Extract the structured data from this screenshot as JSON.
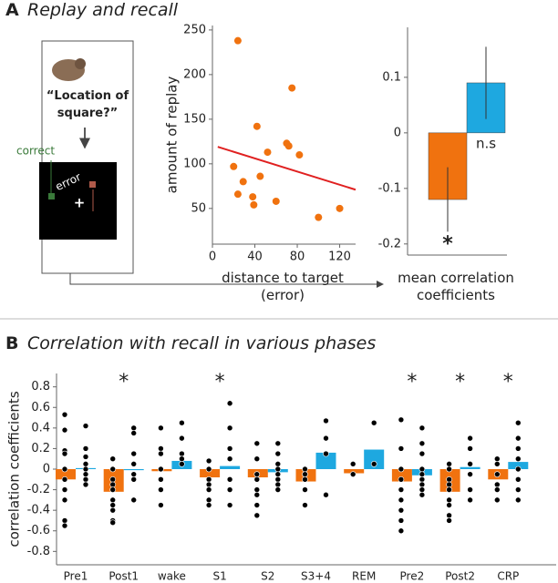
{
  "figure": {
    "panel_a": {
      "label": "A",
      "title": "Replay and recall",
      "diagram": {
        "question": "“Location of square?”",
        "correct": "correct",
        "error": "error"
      }
    },
    "panel_b": {
      "label": "B",
      "title": "Correlation with recall in various phases"
    }
  },
  "chart_data": [
    {
      "type": "scatter",
      "xlabel": "distance to target (error)",
      "ylabel": "amount of replay",
      "color": "#f0720f",
      "x": [
        24,
        75,
        42,
        70,
        72,
        52,
        82,
        20,
        45,
        29,
        24,
        38,
        39,
        60,
        100,
        120
      ],
      "y": [
        238,
        185,
        142,
        123,
        120,
        113,
        110,
        97,
        86,
        80,
        66,
        63,
        54,
        58,
        40,
        50
      ],
      "fit": {
        "x": [
          5,
          135
        ],
        "y": [
          119,
          71
        ],
        "color": "#e02020"
      },
      "xlim": [
        0,
        135
      ],
      "xticks": [
        0,
        40,
        80,
        120
      ],
      "ylim": [
        10,
        255
      ],
      "yticks": [
        50,
        100,
        150,
        200,
        250
      ]
    },
    {
      "type": "bar",
      "xlabel": "mean correlation coefficients",
      "values": [
        -0.12,
        0.09
      ],
      "errors": [
        0.058,
        0.065
      ],
      "colors": [
        "#f0720f",
        "#1ea8e0"
      ],
      "annotations": [
        "*",
        "n.s"
      ],
      "ylim": [
        -0.22,
        0.19
      ],
      "yticks": [
        -0.2,
        -0.1,
        0,
        0.1
      ]
    },
    {
      "type": "grouped_bar",
      "ylabel": "correlation coefficients",
      "categories": [
        "Pre1",
        "Post1",
        "wake",
        "S1",
        "S2",
        "S3+4",
        "REM",
        "Pre2",
        "Post2",
        "CRP"
      ],
      "significance": [
        null,
        "*",
        null,
        "*",
        null,
        null,
        null,
        "*",
        "*",
        "*"
      ],
      "series": [
        {
          "color": "#f0720f",
          "values": [
            -0.1,
            -0.22,
            -0.02,
            -0.08,
            -0.08,
            -0.12,
            -0.04,
            -0.12,
            -0.22,
            -0.1
          ],
          "points": [
            [
              0.53,
              0.38,
              0.18,
              0.15,
              0.0,
              -0.1,
              -0.2,
              -0.3,
              -0.5,
              -0.55
            ],
            [
              0.1,
              0.0,
              -0.1,
              -0.15,
              -0.2,
              -0.3,
              -0.35,
              -0.4,
              -0.5,
              -0.52
            ],
            [
              0.4,
              0.2,
              0.15,
              0.0,
              -0.1,
              -0.2,
              -0.35
            ],
            [
              0.08,
              0.0,
              -0.1,
              -0.15,
              -0.2,
              -0.3,
              -0.35
            ],
            [
              0.25,
              0.1,
              -0.05,
              -0.1,
              -0.2,
              -0.25,
              -0.35,
              -0.45
            ],
            [
              0.0,
              -0.05,
              -0.1,
              -0.2,
              -0.35
            ],
            [
              0.05,
              -0.05
            ],
            [
              0.48,
              0.2,
              0.0,
              -0.1,
              -0.2,
              -0.3,
              -0.4,
              -0.5,
              -0.6
            ],
            [
              0.05,
              0.0,
              -0.1,
              -0.15,
              -0.2,
              -0.3,
              -0.35,
              -0.45,
              -0.5
            ],
            [
              0.1,
              0.05,
              -0.05,
              -0.15,
              -0.2,
              -0.3
            ]
          ]
        },
        {
          "color": "#1ea8e0",
          "values": [
            0.01,
            -0.01,
            0.08,
            0.03,
            -0.03,
            0.16,
            0.19,
            -0.06,
            0.02,
            0.07
          ],
          "points": [
            [
              0.42,
              0.2,
              0.12,
              0.05,
              0.0,
              -0.05,
              -0.1,
              -0.15
            ],
            [
              0.4,
              0.35,
              0.15,
              0.05,
              -0.05,
              -0.1,
              -0.3
            ],
            [
              0.45,
              0.3,
              0.15,
              0.1,
              0.05
            ],
            [
              0.64,
              0.4,
              0.2,
              0.1,
              -0.1,
              -0.2,
              -0.35
            ],
            [
              0.25,
              0.15,
              0.05,
              0.0,
              -0.05,
              -0.1,
              -0.15,
              -0.2
            ],
            [
              0.47,
              0.3,
              0.15,
              -0.25
            ],
            [
              0.45,
              0.05
            ],
            [
              0.4,
              0.25,
              0.15,
              0.0,
              -0.05,
              -0.1,
              -0.15,
              -0.2,
              -0.25
            ],
            [
              0.3,
              0.2,
              0.05,
              -0.05,
              -0.2,
              -0.3
            ],
            [
              0.45,
              0.3,
              0.2,
              0.1,
              0.0,
              -0.1,
              -0.2,
              -0.3
            ]
          ]
        }
      ],
      "ylim": [
        -0.93,
        0.93
      ],
      "yticks": [
        -0.8,
        -0.6,
        -0.4,
        -0.2,
        0,
        0.2,
        0.4,
        0.6,
        0.8
      ]
    }
  ]
}
